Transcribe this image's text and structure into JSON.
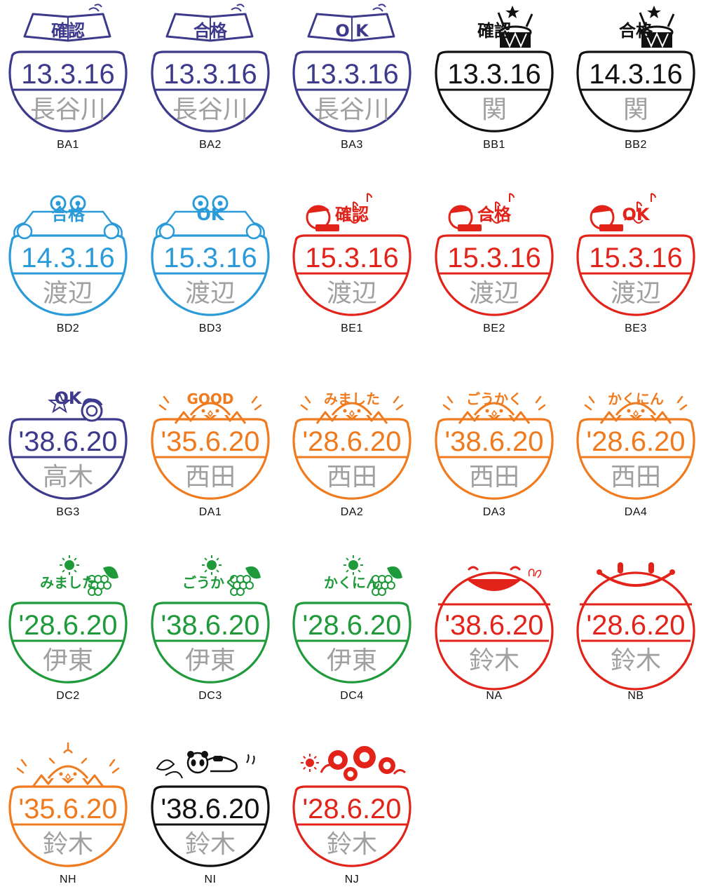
{
  "name_color": "#a0a0a0",
  "stamps": [
    {
      "code": "BA1",
      "color": "#3d3a8c",
      "date": "13.3.16",
      "name": "長谷川",
      "label": "確認",
      "motif": "book-icon"
    },
    {
      "code": "BA2",
      "color": "#3d3a8c",
      "date": "13.3.16",
      "name": "長谷川",
      "label": "合格",
      "motif": "book-icon"
    },
    {
      "code": "BA3",
      "color": "#3d3a8c",
      "date": "13.3.16",
      "name": "長谷川",
      "label": "O K",
      "motif": "book-icon"
    },
    {
      "code": "BB1",
      "color": "#111111",
      "date": "13.3.16",
      "name": "関",
      "label": "確認",
      "motif": "drum-icon"
    },
    {
      "code": "BB2",
      "color": "#111111",
      "date": "14.3.16",
      "name": "関",
      "label": "合格",
      "motif": "drum-icon"
    },
    {
      "code": "BD2",
      "color": "#2a9ad8",
      "date": "14.3.16",
      "name": "渡辺",
      "label": "合格",
      "motif": "frog-car-icon"
    },
    {
      "code": "BD3",
      "color": "#2a9ad8",
      "date": "15.3.16",
      "name": "渡辺",
      "label": "OK",
      "motif": "frog-car-icon"
    },
    {
      "code": "BE1",
      "color": "#e2231a",
      "date": "15.3.16",
      "name": "渡辺",
      "label": "確認",
      "motif": "harmonica-boy-icon"
    },
    {
      "code": "BE2",
      "color": "#e2231a",
      "date": "15.3.16",
      "name": "渡辺",
      "label": "合格",
      "motif": "harmonica-boy-icon"
    },
    {
      "code": "BE3",
      "color": "#e2231a",
      "date": "15.3.16",
      "name": "渡辺",
      "label": "OK",
      "motif": "harmonica-boy-icon"
    },
    {
      "code": "BG3",
      "color": "#3d3a8c",
      "date": "'38.6.20",
      "name": "高木",
      "label": "OK",
      "motif": "star-hand-icon"
    },
    {
      "code": "DA1",
      "color": "#f07a1e",
      "date": "'35.6.20",
      "name": "西田",
      "label": "GOOD",
      "motif": "chick-egg-icon"
    },
    {
      "code": "DA2",
      "color": "#f07a1e",
      "date": "'28.6.20",
      "name": "西田",
      "label": "みました",
      "motif": "chick-egg-icon"
    },
    {
      "code": "DA3",
      "color": "#f07a1e",
      "date": "'38.6.20",
      "name": "西田",
      "label": "ごうかく",
      "motif": "chick-egg-icon"
    },
    {
      "code": "DA4",
      "color": "#f07a1e",
      "date": "'28.6.20",
      "name": "西田",
      "label": "かくにん",
      "motif": "chick-egg-icon"
    },
    {
      "code": "DC2",
      "color": "#1f9a3a",
      "date": "'28.6.20",
      "name": "伊東",
      "label": "みました",
      "motif": "sun-grape-icon"
    },
    {
      "code": "DC3",
      "color": "#1f9a3a",
      "date": "'38.6.20",
      "name": "伊東",
      "label": "ごうかく",
      "motif": "sun-grape-icon"
    },
    {
      "code": "DC4",
      "color": "#1f9a3a",
      "date": "'28.6.20",
      "name": "伊東",
      "label": "かくにん",
      "motif": "sun-grape-icon"
    },
    {
      "code": "NA",
      "color": "#e2231a",
      "date": "'38.6.20",
      "name": "鈴木",
      "label": "",
      "motif": "laughing-face-icon"
    },
    {
      "code": "NB",
      "color": "#e2231a",
      "date": "'28.6.20",
      "name": "鈴木",
      "label": "",
      "motif": "smiley-face-icon"
    },
    {
      "code": "NH",
      "color": "#f07a1e",
      "date": "'35.6.20",
      "name": "鈴木",
      "label": "",
      "motif": "chick-egg-icon"
    },
    {
      "code": "NI",
      "color": "#111111",
      "date": "'38.6.20",
      "name": "鈴木",
      "label": "",
      "motif": "panda-bamboo-icon"
    },
    {
      "code": "NJ",
      "color": "#e2231a",
      "date": "'28.6.20",
      "name": "鈴木",
      "label": "",
      "motif": "sunflower-icon"
    }
  ]
}
